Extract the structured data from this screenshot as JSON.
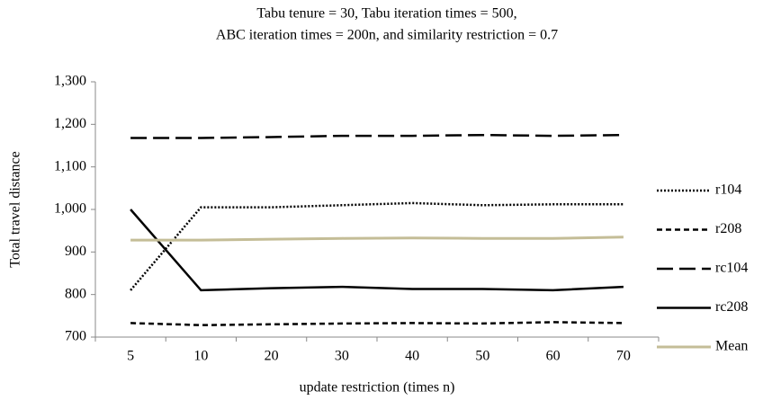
{
  "chart_data": {
    "type": "line",
    "title": [
      "Tabu tenure = 30, Tabu iteration times = 500,",
      "ABC iteration times = 200n, and similarity restriction  = 0.7"
    ],
    "x_label": "update restriction (times n)",
    "y_label": "Total travel distance",
    "categories": [
      "5",
      "10",
      "20",
      "30",
      "40",
      "50",
      "60",
      "70"
    ],
    "ylim": [
      700,
      1300
    ],
    "yticks": [
      700,
      800,
      900,
      {
        "value": 1000,
        "label": "1,000"
      },
      {
        "value": 1100,
        "label": "1,100"
      },
      {
        "value": 1200,
        "label": "1,200"
      },
      {
        "value": 1300,
        "label": "1,300"
      }
    ],
    "grid": false,
    "legend": "right",
    "series": [
      {
        "name": "r104",
        "color": "#000000",
        "style": "dotted",
        "values": [
          810,
          1005,
          1005,
          1010,
          1015,
          1010,
          1012,
          1012
        ]
      },
      {
        "name": "r208",
        "color": "#000000",
        "style": "dashed",
        "values": [
          733,
          728,
          730,
          732,
          733,
          732,
          735,
          733
        ]
      },
      {
        "name": "rc104",
        "color": "#000000",
        "style": "long-dashed",
        "values": [
          1168,
          1168,
          1170,
          1173,
          1173,
          1175,
          1173,
          1175
        ]
      },
      {
        "name": "rc208",
        "color": "#000000",
        "style": "solid",
        "values": [
          1000,
          810,
          815,
          818,
          813,
          813,
          810,
          818
        ]
      },
      {
        "name": "Mean",
        "color": "#c4bd97",
        "style": "solid",
        "values": [
          928,
          928,
          930,
          932,
          933,
          932,
          932,
          935
        ]
      }
    ]
  }
}
